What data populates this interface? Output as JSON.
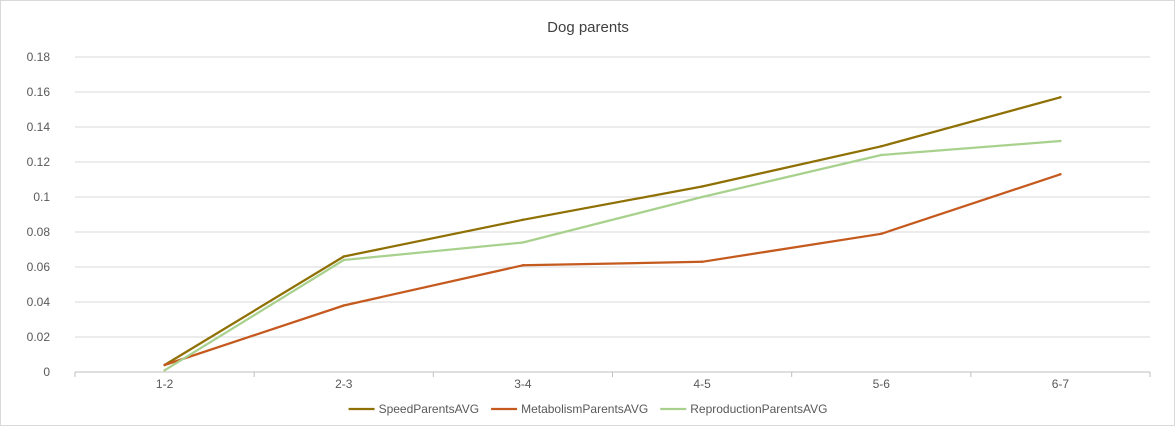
{
  "chart_data": {
    "type": "line",
    "title": "Dog parents",
    "xlabel": "",
    "ylabel": "",
    "categories": [
      "1-2",
      "2-3",
      "3-4",
      "4-5",
      "5-6",
      "6-7"
    ],
    "ylim": [
      0,
      0.18
    ],
    "yticks": [
      0,
      0.02,
      0.04,
      0.06,
      0.08,
      0.1,
      0.12,
      0.14,
      0.16,
      0.18
    ],
    "ytick_labels": [
      "0",
      "0.02",
      "0.04",
      "0.06",
      "0.08",
      "0.1",
      "0.12",
      "0.14",
      "0.16",
      "0.18"
    ],
    "grid": true,
    "legend_position": "bottom",
    "series": [
      {
        "name": "SpeedParentsAVG",
        "color": "#8f7004",
        "values": [
          0.004,
          0.066,
          0.087,
          0.106,
          0.129,
          0.157
        ]
      },
      {
        "name": "MetabolismParentsAVG",
        "color": "#c55a1f",
        "values": [
          0.004,
          0.038,
          0.061,
          0.063,
          0.079,
          0.113
        ]
      },
      {
        "name": "ReproductionParentsAVG",
        "color": "#a9d18e",
        "values": [
          0.001,
          0.064,
          0.074,
          0.1,
          0.124,
          0.132
        ]
      }
    ]
  }
}
